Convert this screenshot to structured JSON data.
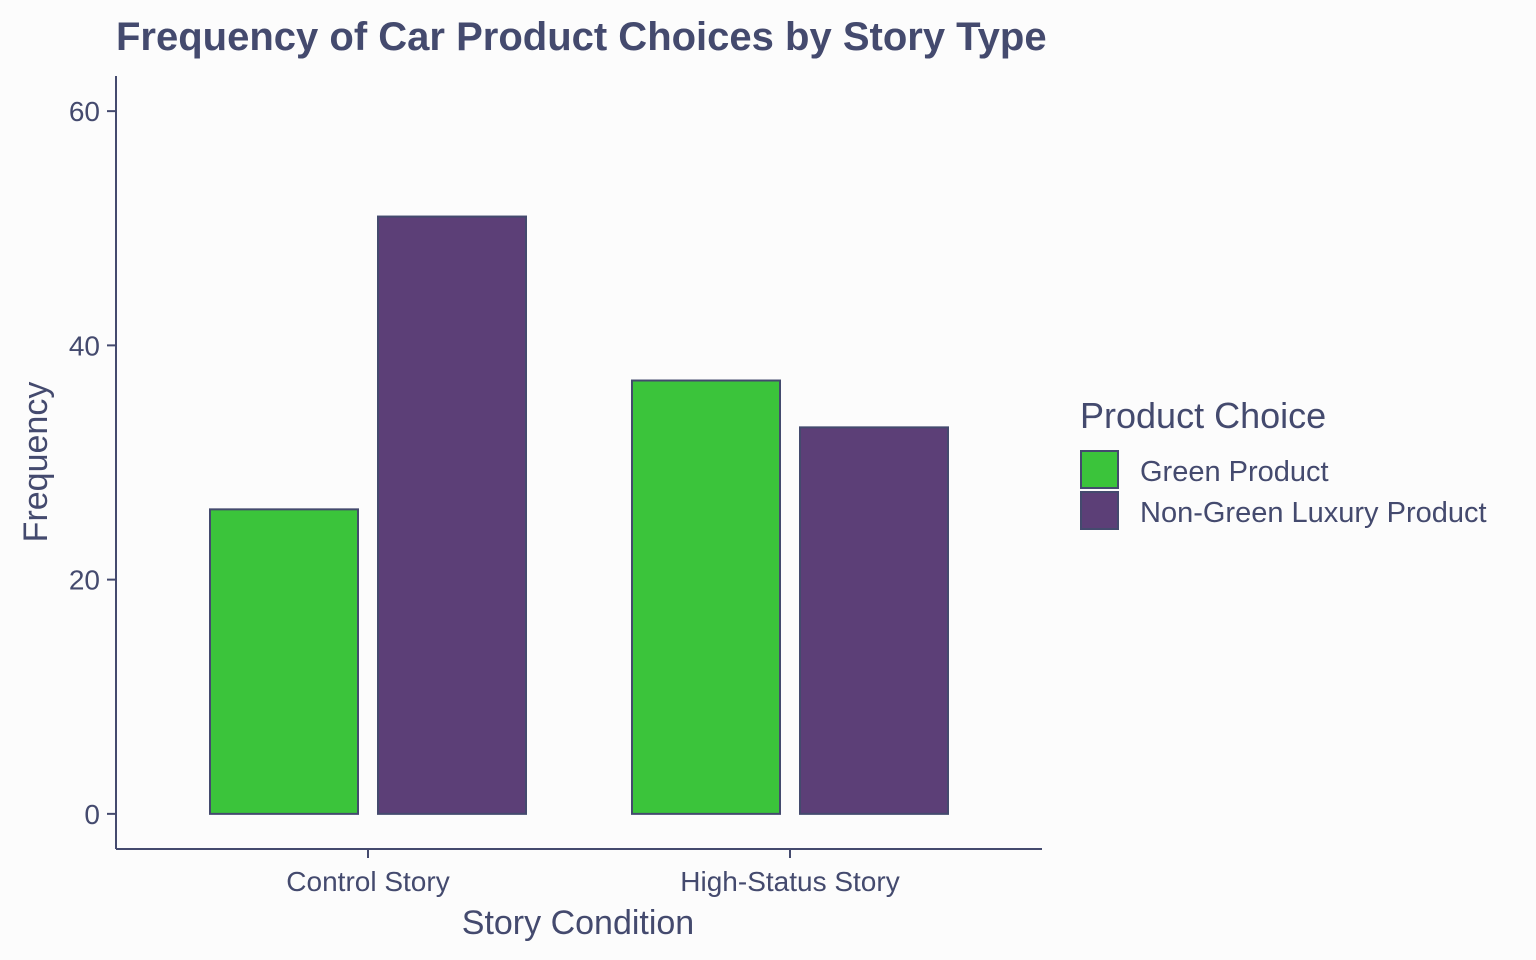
{
  "chart_data": {
    "type": "bar",
    "title": "Frequency of Car Product Choices by Story Type",
    "xlabel": "Story Condition",
    "ylabel": "Frequency",
    "categories": [
      "Control Story",
      "High-Status Story"
    ],
    "series": [
      {
        "name": "Green Product",
        "values": [
          26,
          37
        ],
        "color": "#3bc43b"
      },
      {
        "name": "Non-Green Luxury Product",
        "values": [
          51,
          33
        ],
        "color": "#5c3f77"
      }
    ],
    "ylim": [
      -3,
      63
    ],
    "yticks": [
      0,
      20,
      40,
      60
    ],
    "grid": false,
    "legend": {
      "title": "Product Choice",
      "placement": "right"
    },
    "colors": {
      "text": "#444a6e",
      "axis": "#444a6e",
      "bar_outline": "#444a6e",
      "background": "#fcfcfc"
    }
  }
}
